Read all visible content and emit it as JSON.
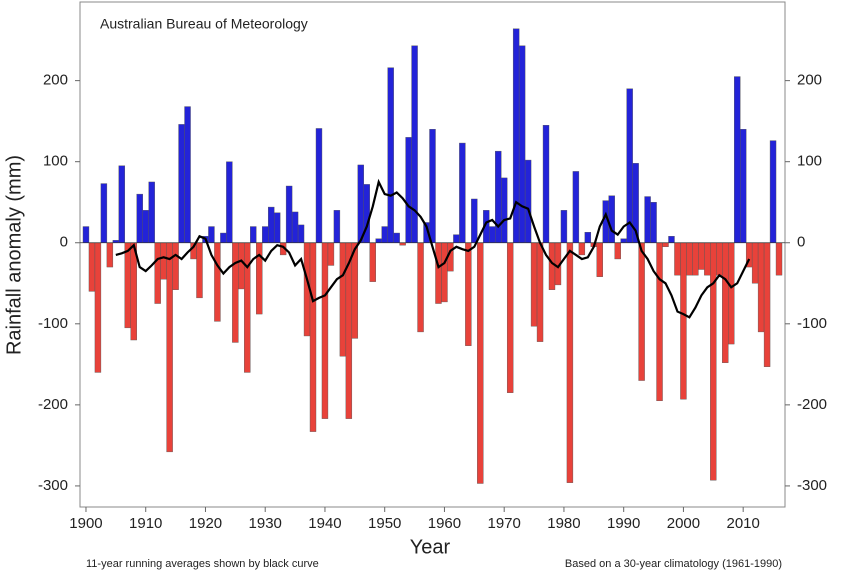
{
  "chart_data": {
    "type": "bar",
    "annotation": "Australian Bureau of Meteorology",
    "ylabel": "Rainfall anomaly (mm)",
    "xlabel": "Year",
    "footnote_left": "11-year running averages shown by black curve",
    "footnote_right": "Based on a 30-year climatology (1961-1990)",
    "positive_color": "#2323d8",
    "negative_color": "#e8423a",
    "xlim": [
      1899,
      2017
    ],
    "xticks": [
      1900,
      1910,
      1920,
      1930,
      1940,
      1950,
      1960,
      1970,
      1980,
      1990,
      2000,
      2010
    ],
    "ylim": [
      -326,
      297
    ],
    "yticks": [
      -300,
      -200,
      -100,
      0,
      100,
      200
    ],
    "x": [
      1900,
      1901,
      1902,
      1903,
      1904,
      1905,
      1906,
      1907,
      1908,
      1909,
      1910,
      1911,
      1912,
      1913,
      1914,
      1915,
      1916,
      1917,
      1918,
      1919,
      1920,
      1921,
      1922,
      1923,
      1924,
      1925,
      1926,
      1927,
      1928,
      1929,
      1930,
      1931,
      1932,
      1933,
      1934,
      1935,
      1936,
      1937,
      1938,
      1939,
      1940,
      1941,
      1942,
      1943,
      1944,
      1945,
      1946,
      1947,
      1948,
      1949,
      1950,
      1951,
      1952,
      1953,
      1954,
      1955,
      1956,
      1957,
      1958,
      1959,
      1960,
      1961,
      1962,
      1963,
      1964,
      1965,
      1966,
      1967,
      1968,
      1969,
      1970,
      1971,
      1972,
      1973,
      1974,
      1975,
      1976,
      1977,
      1978,
      1979,
      1980,
      1981,
      1982,
      1983,
      1984,
      1985,
      1986,
      1987,
      1988,
      1989,
      1990,
      1991,
      1992,
      1993,
      1994,
      1995,
      1996,
      1997,
      1998,
      1999,
      2000,
      2001,
      2002,
      2003,
      2004,
      2005,
      2006,
      2007,
      2008,
      2009,
      2010,
      2011,
      2012,
      2013,
      2014,
      2015,
      2016
    ],
    "values": [
      20,
      -60,
      -160,
      73,
      -30,
      3,
      95,
      -105,
      -120,
      60,
      40,
      75,
      -75,
      -45,
      -258,
      -58,
      146,
      168,
      -20,
      -68,
      8,
      20,
      -97,
      12,
      100,
      -123,
      -57,
      -160,
      20,
      -88,
      20,
      44,
      37,
      -15,
      70,
      38,
      22,
      -115,
      -233,
      141,
      -217,
      -28,
      40,
      -140,
      -217,
      -118,
      96,
      72,
      -48,
      5,
      20,
      216,
      12,
      -3,
      130,
      243,
      -110,
      25,
      140,
      -75,
      -73,
      -35,
      10,
      123,
      -127,
      54,
      -297,
      40,
      20,
      113,
      80,
      -185,
      264,
      243,
      102,
      -103,
      -122,
      145,
      -58,
      -52,
      40,
      -296,
      88,
      -15,
      13,
      -5,
      -42,
      52,
      58,
      -20,
      5,
      190,
      98,
      -170,
      57,
      50,
      -195,
      -5,
      8,
      -40,
      -193,
      -40,
      -40,
      -33,
      -40,
      -293,
      -40,
      -148,
      -125,
      205,
      140,
      -30,
      -50,
      -110,
      -153,
      126,
      -40
    ],
    "running_average": {
      "color": "#000000",
      "x": [
        1905,
        1906,
        1907,
        1908,
        1909,
        1910,
        1911,
        1912,
        1913,
        1914,
        1915,
        1916,
        1917,
        1918,
        1919,
        1920,
        1921,
        1922,
        1923,
        1924,
        1925,
        1926,
        1927,
        1928,
        1929,
        1930,
        1931,
        1932,
        1933,
        1934,
        1935,
        1936,
        1937,
        1938,
        1939,
        1940,
        1941,
        1942,
        1943,
        1944,
        1945,
        1946,
        1947,
        1948,
        1949,
        1950,
        1951,
        1952,
        1953,
        1954,
        1955,
        1956,
        1957,
        1958,
        1959,
        1960,
        1961,
        1962,
        1963,
        1964,
        1965,
        1966,
        1967,
        1968,
        1969,
        1970,
        1971,
        1972,
        1973,
        1974,
        1975,
        1976,
        1977,
        1978,
        1979,
        1980,
        1981,
        1982,
        1983,
        1984,
        1985,
        1986,
        1987,
        1988,
        1989,
        1990,
        1991,
        1992,
        1993,
        1994,
        1995,
        1996,
        1997,
        1998,
        1999,
        2000,
        2001,
        2002,
        2003,
        2004,
        2005,
        2006,
        2007,
        2008,
        2009,
        2010,
        2011
      ],
      "values": [
        -15,
        -13,
        -10,
        -3,
        -30,
        -35,
        -28,
        -20,
        -18,
        -20,
        -15,
        -20,
        -12,
        -5,
        8,
        5,
        -15,
        -28,
        -38,
        -30,
        -25,
        -22,
        -30,
        -20,
        -15,
        -22,
        -10,
        -3,
        -5,
        -12,
        -28,
        -20,
        -45,
        -72,
        -68,
        -65,
        -55,
        -45,
        -40,
        -25,
        -8,
        3,
        20,
        45,
        75,
        60,
        58,
        62,
        55,
        45,
        40,
        32,
        20,
        -5,
        -30,
        -25,
        -10,
        -5,
        -8,
        -10,
        -5,
        10,
        25,
        28,
        20,
        28,
        30,
        50,
        45,
        42,
        20,
        0,
        -15,
        -25,
        -30,
        -20,
        -10,
        -15,
        -20,
        -18,
        -5,
        20,
        35,
        15,
        10,
        20,
        25,
        15,
        -10,
        -20,
        -35,
        -45,
        -50,
        -65,
        -85,
        -88,
        -92,
        -80,
        -65,
        -55,
        -50,
        -40,
        -45,
        -55,
        -50,
        -35,
        -20
      ]
    }
  }
}
